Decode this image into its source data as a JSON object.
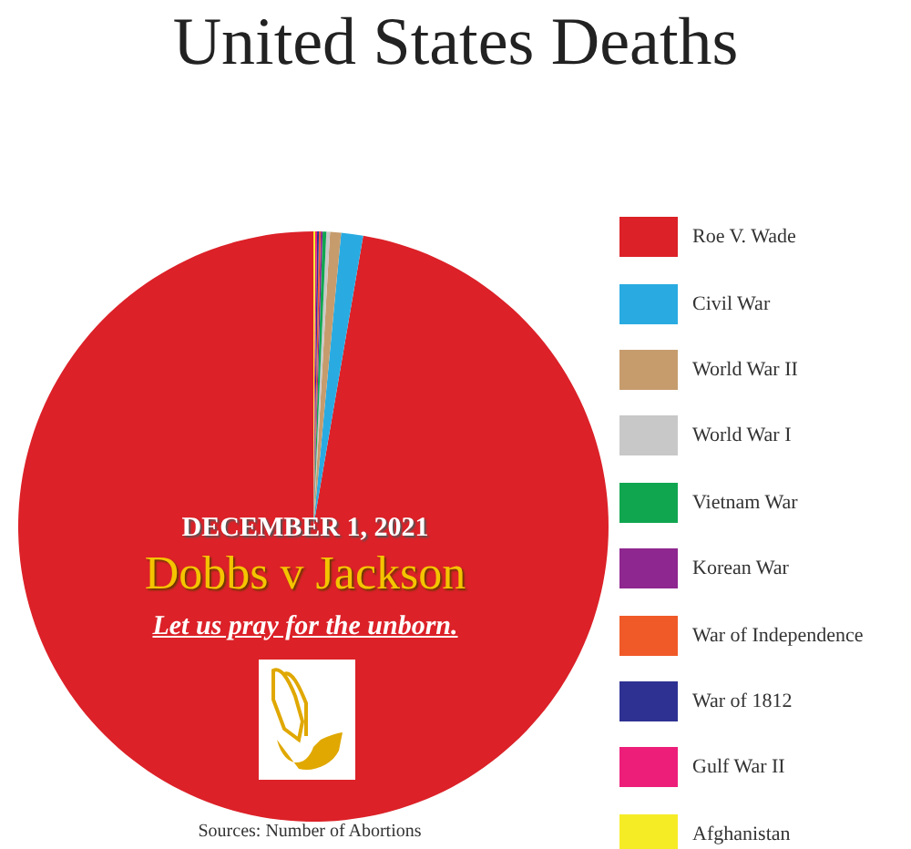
{
  "chart_data": {
    "type": "pie",
    "title": "United States Deaths",
    "categories": [
      "Roe V. Wade",
      "Civil War",
      "World War II",
      "World War I",
      "Vietnam War",
      "Korean War",
      "War of Independence",
      "War of 1812",
      "Gulf War II",
      "Afghanistan"
    ],
    "values": [
      97.3,
      1.2,
      0.6,
      0.2,
      0.2,
      0.1,
      0.1,
      0.1,
      0.1,
      0.1
    ],
    "colors": [
      "#dc2128",
      "#29abe2",
      "#c69c6d",
      "#c8c8c8",
      "#10a650",
      "#8e278f",
      "#f05a28",
      "#2e3192",
      "#ec1e79",
      "#f6ec26"
    ],
    "legend": "right",
    "annotations": [
      "DECEMBER 1, 2021",
      "Dobbs v Jackson",
      "Let us pray for the unborn.",
      "Sources: Number of Abortions"
    ]
  }
}
